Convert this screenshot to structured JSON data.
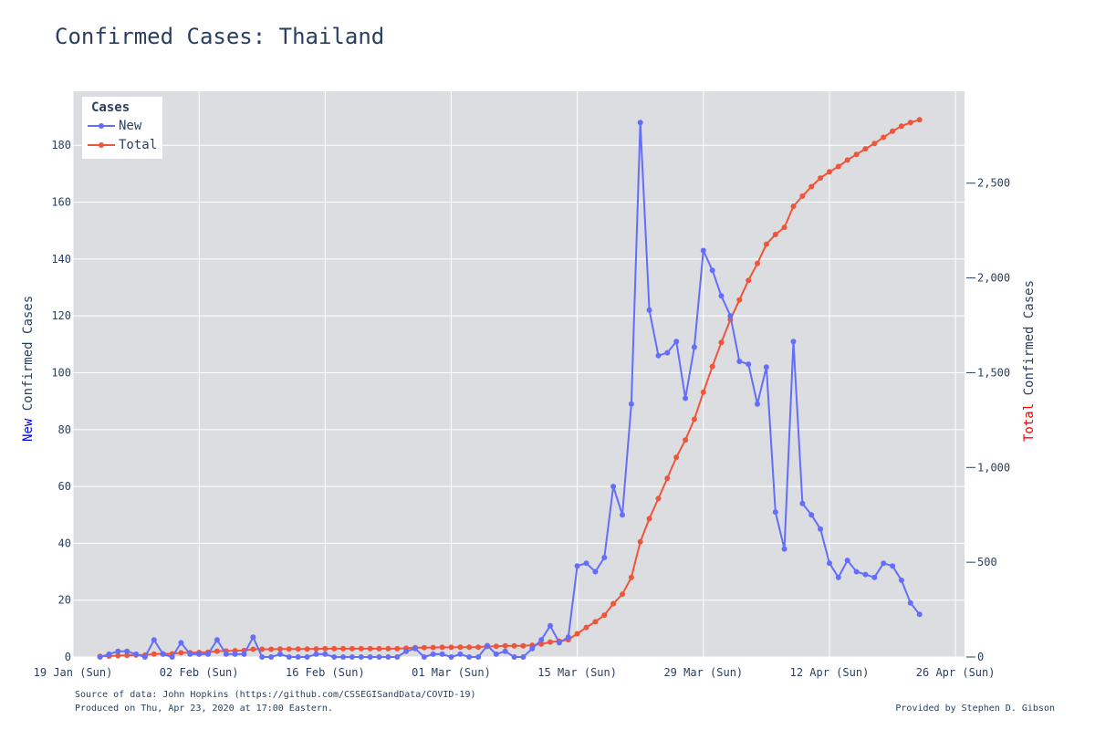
{
  "page": {
    "title": "Confirmed Cases: Thailand",
    "source": "Source of data: John Hopkins (https://github.com/CSSEGISandData/COVID-19)",
    "produced": "Produced on Thu, Apr 23, 2020 at 17:00 Eastern.",
    "provided": "Provided by Stephen D. Gibson"
  },
  "chart_data": {
    "type": "line",
    "title": "Confirmed Cases: Thailand",
    "start_date": "2020-01-22",
    "x_range": [
      "2020-01-19",
      "2020-04-27"
    ],
    "x_ticks": [
      "19 Jan (Sun)",
      "02 Feb (Sun)",
      "16 Feb (Sun)",
      "01 Mar (Sun)",
      "15 Mar (Sun)",
      "29 Mar (Sun)",
      "12 Apr (Sun)",
      "26 Apr (Sun)"
    ],
    "y_left": {
      "label_prefix": "New",
      "label_rest": " Confirmed Cases",
      "range": [
        0,
        199
      ],
      "ticks": [
        0,
        20,
        40,
        60,
        80,
        100,
        120,
        140,
        160,
        180
      ]
    },
    "y_right": {
      "label_prefix": "Total",
      "label_rest": " Confirmed Cases",
      "range": [
        0,
        2985
      ],
      "ticks": [
        "0",
        "500",
        "1,000",
        "1,500",
        "2,000",
        "2,500"
      ],
      "tick_values": [
        0,
        500,
        1000,
        1500,
        2000,
        2500
      ]
    },
    "legend": {
      "title": "Cases",
      "placement": "top-left"
    },
    "grid": true,
    "series": [
      {
        "name": "New",
        "axis": "left",
        "color": "#636efa",
        "values": [
          0,
          1,
          2,
          2,
          1,
          0,
          6,
          1,
          0,
          5,
          1,
          1,
          1,
          6,
          1,
          1,
          1,
          7,
          0,
          0,
          1,
          0,
          0,
          0,
          1,
          1,
          0,
          0,
          0,
          0,
          0,
          0,
          0,
          0,
          2,
          3,
          0,
          1,
          1,
          0,
          1,
          0,
          0,
          4,
          1,
          2,
          0,
          0,
          3,
          6,
          11,
          5,
          7,
          32,
          33,
          30,
          35,
          60,
          50,
          89,
          188,
          122,
          106,
          107,
          111,
          91,
          109,
          143,
          136,
          127,
          120,
          104,
          103,
          89,
          102,
          51,
          38,
          111,
          54,
          50,
          45,
          33,
          28,
          34,
          30,
          29,
          28,
          33,
          32,
          27,
          19,
          15
        ]
      },
      {
        "name": "Total",
        "axis": "right",
        "color": "#ef553b",
        "values": [
          4,
          5,
          7,
          9,
          10,
          10,
          16,
          17,
          17,
          22,
          23,
          24,
          25,
          31,
          32,
          33,
          34,
          41,
          41,
          41,
          42,
          42,
          42,
          42,
          43,
          44,
          44,
          44,
          44,
          44,
          44,
          44,
          44,
          44,
          46,
          49,
          49,
          50,
          51,
          51,
          52,
          52,
          52,
          56,
          57,
          59,
          59,
          59,
          62,
          68,
          79,
          84,
          91,
          123,
          156,
          186,
          221,
          281,
          331,
          420,
          608,
          730,
          836,
          943,
          1054,
          1145,
          1254,
          1397,
          1533,
          1660,
          1780,
          1884,
          1987,
          2076,
          2178,
          2229,
          2267,
          2378,
          2432,
          2482,
          2527,
          2560,
          2588,
          2622,
          2652,
          2681,
          2709,
          2742,
          2774,
          2801,
          2820,
          2835
        ]
      }
    ]
  }
}
